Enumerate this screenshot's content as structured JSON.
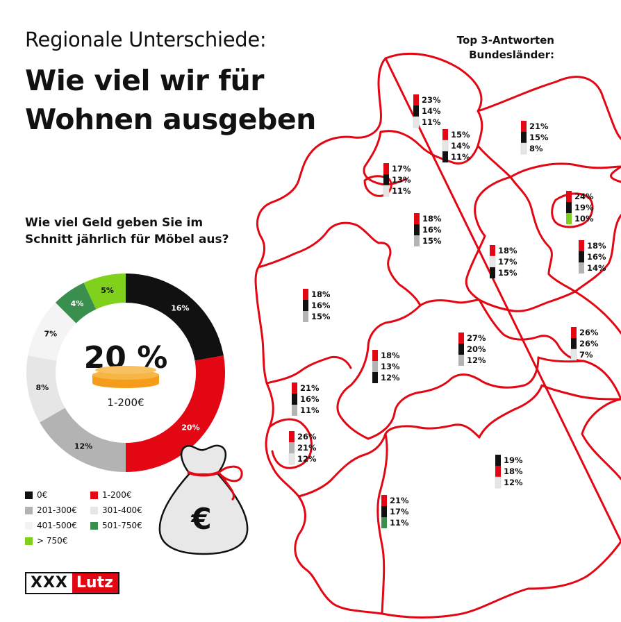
{
  "header": {
    "subtitle": "Regionale Unterschiede:",
    "title_line1": "Wie viel wir für",
    "title_line2": "Wohnen ausgeben"
  },
  "map_header": {
    "line1": "Top 3-Antworten",
    "line2": "Bundesländer:"
  },
  "question": {
    "line1": "Wie viel Geld geben Sie im",
    "line2": "Schnitt jährlich für Möbel aus?"
  },
  "colors": {
    "accent": "#e30613",
    "black": "#111111",
    "mid_grey": "#b3b3b3",
    "light_grey": "#e6e6e6",
    "lightest_grey": "#f4f4f4",
    "dark_green": "#3a8f4e",
    "light_green": "#7fd11b"
  },
  "chart_data": [
    {
      "type": "pie",
      "title": "Wie viel Geld geben Sie im Schnitt jährlich für Möbel aus?",
      "center_value": "20 %",
      "center_label": "1-200€",
      "categories": [
        "0€",
        "1-200€",
        "201-300€",
        "301-400€",
        "401-500€",
        "501-750€",
        "> 750€"
      ],
      "values": [
        16,
        20,
        12,
        8,
        7,
        4,
        5
      ],
      "colors": [
        "#111111",
        "#e30613",
        "#b3b3b3",
        "#e6e6e6",
        "#f4f4f4",
        "#3a8f4e",
        "#7fd11b"
      ],
      "legend": [
        {
          "label": "0€",
          "color": "#111111"
        },
        {
          "label": "1-200€",
          "color": "#e30613"
        },
        {
          "label": "201-300€",
          "color": "#b3b3b3"
        },
        {
          "label": "301-400€",
          "color": "#e6e6e6"
        },
        {
          "label": "401-500€",
          "color": "#f4f4f4"
        },
        {
          "label": "501-750€",
          "color": "#3a8f4e"
        },
        {
          "label": "> 750€",
          "color": "#7fd11b"
        }
      ]
    },
    {
      "type": "bar",
      "title": "Top 3-Antworten Bundesländer:",
      "note": "stacked top-3 answers per federal state, colors follow the donut legend",
      "regions": [
        {
          "values": [
            23,
            14,
            11
          ],
          "colors": [
            "#e30613",
            "#111111",
            "#e6e6e6"
          ]
        },
        {
          "values": [
            15,
            14,
            11
          ],
          "colors": [
            "#e30613",
            "#e6e6e6",
            "#111111"
          ]
        },
        {
          "values": [
            21,
            15,
            8
          ],
          "colors": [
            "#e30613",
            "#111111",
            "#e6e6e6"
          ]
        },
        {
          "values": [
            17,
            13,
            11
          ],
          "colors": [
            "#e30613",
            "#111111",
            "#e6e6e6"
          ]
        },
        {
          "values": [
            24,
            19,
            10
          ],
          "colors": [
            "#e30613",
            "#111111",
            "#7fd11b"
          ]
        },
        {
          "values": [
            18,
            16,
            15
          ],
          "colors": [
            "#e30613",
            "#111111",
            "#b3b3b3"
          ]
        },
        {
          "values": [
            18,
            17,
            15
          ],
          "colors": [
            "#e30613",
            "#e6e6e6",
            "#111111"
          ]
        },
        {
          "values": [
            18,
            16,
            14
          ],
          "colors": [
            "#e30613",
            "#111111",
            "#b3b3b3"
          ]
        },
        {
          "values": [
            18,
            16,
            15
          ],
          "colors": [
            "#e30613",
            "#111111",
            "#b3b3b3"
          ]
        },
        {
          "values": [
            27,
            20,
            12
          ],
          "colors": [
            "#e30613",
            "#111111",
            "#b3b3b3"
          ]
        },
        {
          "values": [
            26,
            26,
            7
          ],
          "colors": [
            "#e30613",
            "#111111",
            "#e6e6e6"
          ]
        },
        {
          "values": [
            18,
            13,
            12
          ],
          "colors": [
            "#e30613",
            "#b3b3b3",
            "#111111"
          ]
        },
        {
          "values": [
            21,
            16,
            11
          ],
          "colors": [
            "#e30613",
            "#111111",
            "#b3b3b3"
          ]
        },
        {
          "values": [
            26,
            21,
            12
          ],
          "colors": [
            "#e30613",
            "#b3b3b3",
            "#e6e6e6"
          ]
        },
        {
          "values": [
            19,
            18,
            12
          ],
          "colors": [
            "#111111",
            "#e30613",
            "#e6e6e6"
          ]
        },
        {
          "values": [
            21,
            17,
            11
          ],
          "colors": [
            "#e30613",
            "#111111",
            "#3a8f4e"
          ]
        }
      ]
    }
  ],
  "bag": {
    "icon": "money-bag-icon",
    "symbol": "€"
  },
  "logo": {
    "part1": "XXX",
    "part2": "Lutz"
  }
}
